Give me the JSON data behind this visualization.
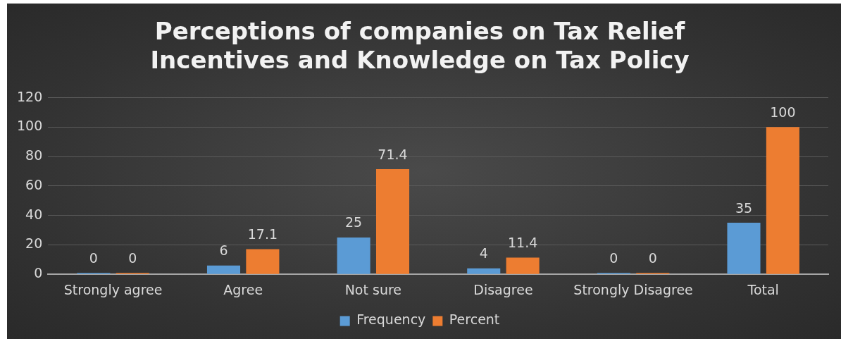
{
  "chart_data": {
    "type": "bar",
    "title": "Perceptions of companies on Tax Relief Incentives and Knowledge on Tax Policy",
    "categories": [
      "Strongly agree",
      "Agree",
      "Not sure",
      "Disagree",
      "Strongly Disagree",
      "Total"
    ],
    "series": [
      {
        "name": "Frequency",
        "color": "#5b9bd5",
        "values": [
          0,
          6,
          25,
          4,
          0,
          35
        ]
      },
      {
        "name": "Percent",
        "color": "#ed7d31",
        "values": [
          0,
          17.1,
          71.4,
          11.4,
          0,
          100
        ]
      }
    ],
    "ylim": [
      0,
      120
    ],
    "yticks": [
      0,
      20,
      40,
      60,
      80,
      100,
      120
    ],
    "grid": "y",
    "legend": "bottom",
    "data_labels": true
  }
}
